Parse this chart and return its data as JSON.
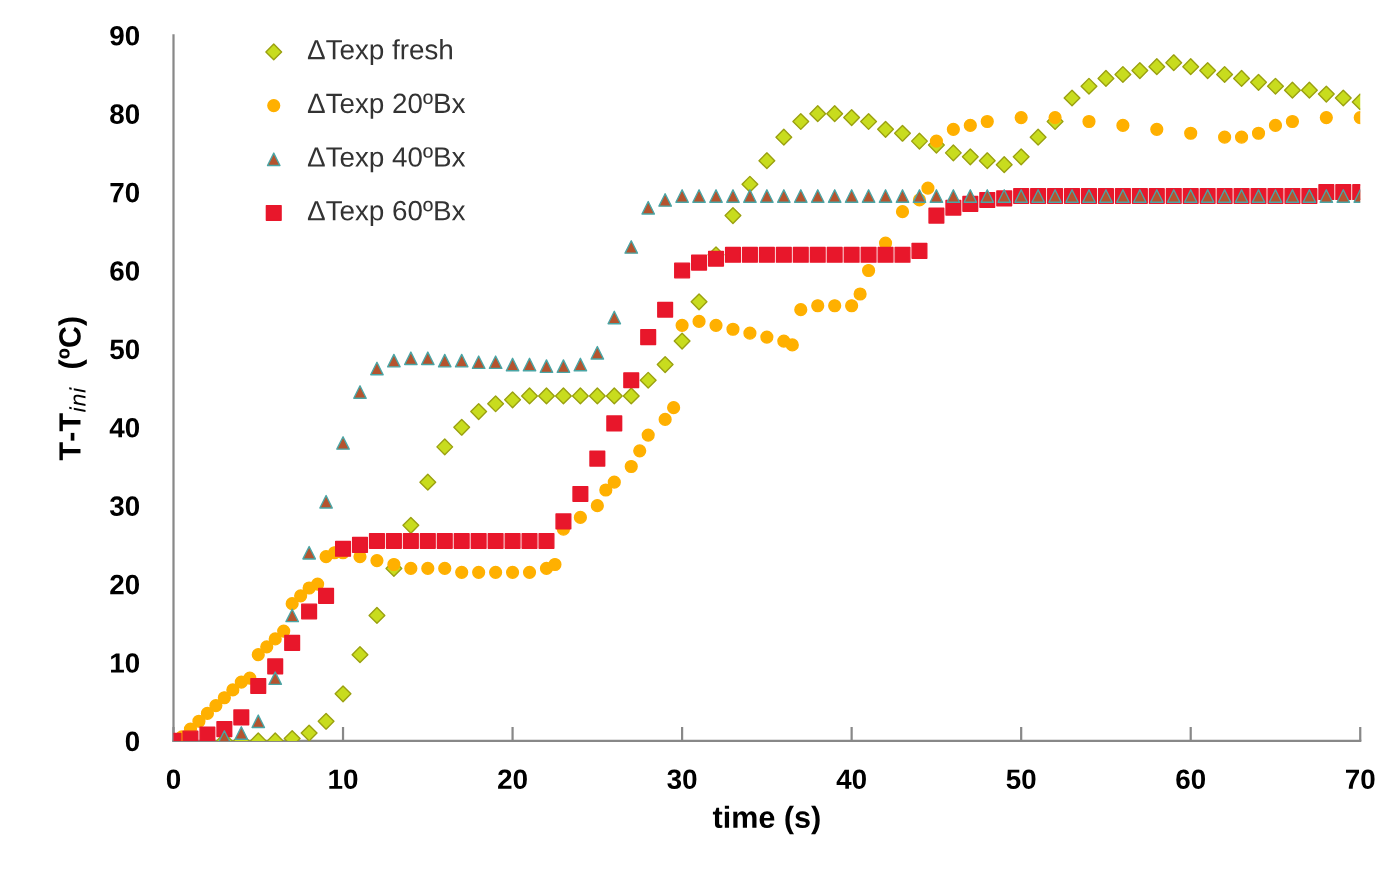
{
  "chart_data": {
    "type": "scatter",
    "xlabel": "time (s)",
    "ylabel": "T-T$_{ini}$  (ºC)",
    "xlim": [
      0,
      70
    ],
    "xticks": [
      0,
      10,
      20,
      30,
      40,
      50,
      60,
      70
    ],
    "ylim": [
      0,
      90
    ],
    "yticks": [
      0,
      10,
      20,
      30,
      40,
      50,
      60,
      70,
      80,
      90
    ],
    "grid": false,
    "legend": "top left",
    "series": [
      {
        "name": "ΔTexp fresh",
        "color": "#c8dc1e",
        "marker": "diamond",
        "x": [
          3,
          4,
          5,
          6,
          7,
          8,
          9,
          10,
          11,
          12,
          13,
          14,
          15,
          16,
          17,
          18,
          19,
          20,
          21,
          22,
          23,
          24,
          25,
          26,
          27,
          28,
          29,
          30,
          31,
          32,
          33,
          34,
          35,
          36,
          37,
          38,
          39,
          40,
          41,
          42,
          43,
          44,
          45,
          46,
          47,
          48,
          49,
          50,
          51,
          52,
          53,
          54,
          55,
          56,
          57,
          58,
          59,
          60,
          61,
          62,
          63,
          64,
          65,
          66,
          67,
          68,
          69,
          70
        ],
        "values": [
          0,
          0,
          0,
          0,
          0.3,
          1,
          2.5,
          6,
          11,
          16,
          22,
          27.5,
          33,
          37.5,
          40,
          42,
          43,
          43.5,
          44,
          44,
          44,
          44,
          44,
          44,
          44,
          46,
          48,
          51,
          56,
          62,
          67,
          71,
          74,
          77,
          79,
          80,
          80,
          79.5,
          79,
          78,
          77.5,
          76.5,
          76,
          75,
          74.5,
          74,
          73.5,
          74.5,
          77,
          79,
          82,
          83.5,
          84.5,
          85,
          85.5,
          86,
          86.5,
          86,
          85.5,
          85,
          84.5,
          84,
          83.5,
          83,
          83,
          82.5,
          82,
          81.5
        ]
      },
      {
        "name": "ΔTexp 20ºBx",
        "color": "#ffb000",
        "marker": "circle",
        "x": [
          0.5,
          1,
          1.5,
          2,
          2.5,
          3,
          3.5,
          4,
          4.5,
          5,
          5.5,
          6,
          6.5,
          7,
          7.5,
          8,
          8.5,
          9,
          9.5,
          10,
          11,
          12,
          13,
          14,
          15,
          16,
          17,
          18,
          19,
          20,
          21,
          22,
          22.5,
          23,
          24,
          25,
          25.5,
          26,
          27,
          27.5,
          28,
          29,
          29.5,
          30,
          31,
          32,
          33,
          34,
          35,
          36,
          36.5,
          37,
          38,
          39,
          40,
          40.5,
          41,
          42,
          43,
          44,
          44.5,
          45,
          46,
          47,
          48,
          50,
          52,
          54,
          56,
          58,
          60,
          62,
          63,
          64,
          65,
          66,
          68,
          70
        ],
        "values": [
          0.5,
          1.5,
          2.5,
          3.5,
          4.5,
          5.5,
          6.5,
          7.5,
          8,
          11,
          12,
          13,
          14,
          17.5,
          18.5,
          19.5,
          20,
          23.5,
          24,
          24,
          23.5,
          23,
          22.5,
          22,
          22,
          22,
          21.5,
          21.5,
          21.5,
          21.5,
          21.5,
          22,
          22.5,
          27,
          28.5,
          30,
          32,
          33,
          35,
          37,
          39,
          41,
          42.5,
          53,
          53.5,
          53,
          52.5,
          52,
          51.5,
          51,
          50.5,
          55,
          55.5,
          55.5,
          55.5,
          57,
          60,
          63.5,
          67.5,
          69,
          70.5,
          76.5,
          78,
          78.5,
          79,
          79.5,
          79.5,
          79,
          78.5,
          78,
          77.5,
          77,
          77,
          77.5,
          78.5,
          79,
          79.5,
          79.5
        ]
      },
      {
        "name": "ΔTexp 40ºBx",
        "color": "#b5532e",
        "marker": "triangle",
        "x": [
          3,
          4,
          5,
          6,
          7,
          8,
          9,
          10,
          11,
          12,
          13,
          14,
          15,
          16,
          17,
          18,
          19,
          20,
          21,
          22,
          23,
          24,
          25,
          26,
          27,
          28,
          29,
          30,
          31,
          32,
          33,
          34,
          35,
          36,
          37,
          38,
          39,
          40,
          41,
          42,
          43,
          44,
          45,
          46,
          47,
          48,
          49,
          50,
          51,
          52,
          53,
          54,
          55,
          56,
          57,
          58,
          59,
          60,
          61,
          62,
          63,
          64,
          65,
          66,
          67,
          68,
          69,
          70
        ],
        "values": [
          0.5,
          1,
          2.5,
          8,
          16,
          24,
          30.5,
          38,
          44.5,
          47.5,
          48.5,
          48.8,
          48.8,
          48.5,
          48.5,
          48.3,
          48.3,
          48,
          48,
          47.8,
          47.8,
          48,
          49.5,
          54,
          63,
          68,
          69,
          69.5,
          69.5,
          69.5,
          69.5,
          69.5,
          69.5,
          69.5,
          69.5,
          69.5,
          69.5,
          69.5,
          69.5,
          69.5,
          69.5,
          69.5,
          69.5,
          69.5,
          69.5,
          69.5,
          69.5,
          69.5,
          69.5,
          69.5,
          69.5,
          69.5,
          69.5,
          69.5,
          69.5,
          69.5,
          69.5,
          69.5,
          69.5,
          69.5,
          69.5,
          69.5,
          69.5,
          69.5,
          69.5,
          69.5,
          69.5,
          69.5
        ]
      },
      {
        "name": "ΔTexp 60ºBx",
        "color": "#e8172b",
        "marker": "square",
        "x": [
          0,
          1,
          2,
          3,
          4,
          5,
          6,
          7,
          8,
          9,
          10,
          11,
          12,
          13,
          14,
          15,
          16,
          17,
          18,
          19,
          20,
          21,
          22,
          23,
          24,
          25,
          26,
          27,
          28,
          29,
          30,
          31,
          32,
          33,
          34,
          35,
          36,
          37,
          38,
          39,
          40,
          41,
          42,
          43,
          44,
          45,
          46,
          47,
          48,
          49,
          50,
          51,
          52,
          53,
          54,
          55,
          56,
          57,
          58,
          59,
          60,
          61,
          62,
          63,
          64,
          65,
          66,
          67,
          68,
          69,
          70
        ],
        "values": [
          0,
          0.3,
          0.8,
          1.5,
          3,
          7,
          9.5,
          12.5,
          16.5,
          18.5,
          24.5,
          25,
          25.5,
          25.5,
          25.5,
          25.5,
          25.5,
          25.5,
          25.5,
          25.5,
          25.5,
          25.5,
          25.5,
          28,
          31.5,
          36,
          40.5,
          46,
          51.5,
          55,
          60,
          61,
          61.5,
          62,
          62,
          62,
          62,
          62,
          62,
          62,
          62,
          62,
          62,
          62,
          62.5,
          67,
          68,
          68.5,
          69,
          69.2,
          69.5,
          69.5,
          69.5,
          69.5,
          69.5,
          69.5,
          69.5,
          69.5,
          69.5,
          69.5,
          69.5,
          69.5,
          69.5,
          69.5,
          69.5,
          69.5,
          69.5,
          69.5,
          70,
          70,
          70
        ]
      }
    ]
  }
}
